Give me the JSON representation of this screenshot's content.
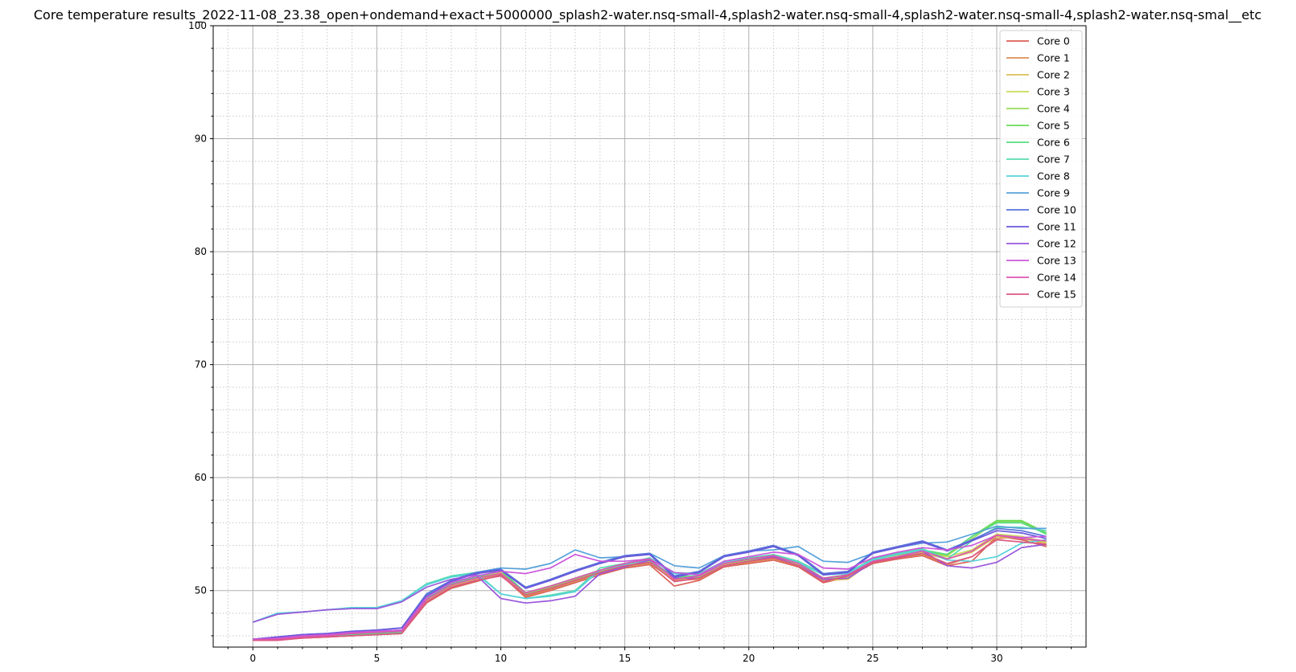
{
  "chart_data": {
    "type": "line",
    "title": "Core temperature results_2022-11-08_23.38_open+ondemand+exact+5000000_splash2-water.nsq-small-4,splash2-water.nsq-small-4,splash2-water.nsq-small-4,splash2-water.nsq-smal__etc",
    "xlabel": "",
    "ylabel": "",
    "xlim": [
      -1.6,
      33.6
    ],
    "ylim": [
      45.0,
      100.0
    ],
    "xticks": [
      0,
      5,
      10,
      15,
      20,
      25,
      30
    ],
    "yticks": [
      50,
      60,
      70,
      80,
      90,
      100
    ],
    "grid": true,
    "legend": "top-right",
    "x": [
      0,
      1,
      2,
      3,
      4,
      5,
      6,
      7,
      8,
      9,
      10,
      11,
      12,
      13,
      14,
      15,
      16,
      17,
      18,
      19,
      20,
      21,
      22,
      23,
      24,
      25,
      26,
      27,
      28,
      29,
      30,
      31,
      32
    ],
    "series": [
      {
        "name": "Core 0",
        "color": "#db5f57",
        "values": [
          45.6,
          45.7,
          45.8,
          45.9,
          46.0,
          46.1,
          46.2,
          48.9,
          50.2,
          50.8,
          51.4,
          49.4,
          50.0,
          50.7,
          51.4,
          52.0,
          52.3,
          50.4,
          50.9,
          52.1,
          52.4,
          52.7,
          52.1,
          50.7,
          51.2,
          52.4,
          52.8,
          53.1,
          52.2,
          52.6,
          54.8,
          54.5,
          53.9
        ]
      },
      {
        "name": "Core 1",
        "color": "#db8f57",
        "values": [
          45.6,
          45.7,
          45.8,
          45.9,
          46.0,
          46.1,
          46.2,
          49.0,
          50.3,
          50.9,
          51.5,
          49.5,
          50.1,
          50.8,
          51.5,
          52.1,
          52.4,
          50.9,
          51.0,
          52.2,
          52.5,
          52.8,
          52.2,
          50.8,
          51.3,
          52.5,
          52.9,
          53.2,
          52.3,
          53.0,
          54.6,
          54.8,
          54.0
        ]
      },
      {
        "name": "Core 2",
        "color": "#dbbf57",
        "values": [
          45.7,
          45.8,
          45.9,
          46.0,
          46.1,
          46.2,
          46.3,
          49.1,
          50.4,
          51.0,
          51.6,
          49.6,
          50.2,
          50.9,
          51.6,
          52.2,
          52.5,
          51.0,
          51.1,
          52.3,
          52.6,
          52.9,
          52.3,
          50.9,
          51.0,
          52.6,
          53.0,
          53.3,
          52.8,
          53.4,
          54.8,
          54.6,
          54.2
        ]
      },
      {
        "name": "Core 3",
        "color": "#c9db57",
        "values": [
          45.7,
          45.8,
          45.9,
          46.0,
          46.1,
          46.2,
          46.3,
          49.2,
          50.5,
          51.1,
          51.7,
          49.7,
          50.3,
          51.0,
          51.7,
          52.3,
          52.6,
          51.1,
          51.2,
          52.4,
          52.7,
          53.0,
          52.4,
          51.0,
          51.2,
          52.7,
          53.1,
          53.4,
          53.0,
          53.6,
          55.0,
          54.8,
          54.3
        ]
      },
      {
        "name": "Core 4",
        "color": "#99db57",
        "values": [
          45.7,
          45.8,
          45.9,
          46.0,
          46.1,
          46.2,
          46.3,
          49.2,
          50.5,
          51.1,
          51.7,
          49.7,
          50.3,
          51.0,
          51.7,
          52.3,
          52.6,
          51.1,
          51.2,
          52.4,
          52.7,
          53.0,
          52.4,
          51.0,
          51.3,
          52.8,
          53.2,
          53.5,
          53.1,
          54.6,
          56.1,
          56.1,
          55.0
        ]
      },
      {
        "name": "Core 5",
        "color": "#69db57",
        "values": [
          45.7,
          45.8,
          45.9,
          46.0,
          46.1,
          46.2,
          46.3,
          49.3,
          50.6,
          51.2,
          51.8,
          49.8,
          50.4,
          51.1,
          51.8,
          52.4,
          52.7,
          51.2,
          51.3,
          52.5,
          52.8,
          53.1,
          52.5,
          51.1,
          51.4,
          52.9,
          53.3,
          53.6,
          53.2,
          54.8,
          56.2,
          56.2,
          55.1
        ]
      },
      {
        "name": "Core 6",
        "color": "#57db80",
        "values": [
          45.7,
          45.8,
          45.9,
          46.0,
          46.1,
          46.2,
          46.3,
          49.3,
          50.6,
          51.2,
          51.8,
          49.8,
          50.4,
          51.1,
          51.8,
          52.4,
          52.7,
          51.2,
          51.3,
          52.5,
          52.8,
          53.1,
          52.5,
          51.1,
          51.4,
          52.9,
          53.3,
          53.6,
          53.2,
          54.8,
          56.0,
          56.0,
          55.0
        ]
      },
      {
        "name": "Core 7",
        "color": "#57dbb0",
        "values": [
          47.2,
          48.0,
          48.1,
          48.3,
          48.5,
          48.5,
          49.1,
          50.6,
          51.3,
          51.6,
          49.7,
          49.3,
          49.6,
          50.0,
          52.0,
          52.4,
          52.9,
          51.6,
          51.5,
          52.6,
          52.9,
          53.2,
          52.6,
          51.5,
          51.6,
          52.8,
          53.3,
          53.7,
          52.8,
          54.4,
          55.6,
          55.6,
          55.3
        ]
      },
      {
        "name": "Core 8",
        "color": "#57d3db",
        "values": [
          47.2,
          48.0,
          48.1,
          48.3,
          48.5,
          48.5,
          49.1,
          50.5,
          51.2,
          51.5,
          49.7,
          49.3,
          49.5,
          49.9,
          51.8,
          52.3,
          52.8,
          51.5,
          51.4,
          52.5,
          52.8,
          53.1,
          52.5,
          51.4,
          51.5,
          52.7,
          53.2,
          53.6,
          52.7,
          52.6,
          53.0,
          54.2,
          54.5
        ]
      },
      {
        "name": "Core 9",
        "color": "#57a2db",
        "values": [
          45.7,
          45.8,
          46.0,
          46.1,
          46.2,
          46.4,
          46.5,
          49.6,
          50.9,
          51.6,
          52.0,
          51.9,
          52.4,
          53.6,
          52.9,
          53.0,
          53.3,
          52.2,
          52.0,
          53.1,
          53.5,
          53.6,
          53.9,
          52.6,
          52.5,
          53.3,
          53.8,
          54.2,
          54.3,
          55.0,
          55.7,
          55.5,
          55.5
        ]
      },
      {
        "name": "Core 10",
        "color": "#5772db",
        "values": [
          45.7,
          45.9,
          46.1,
          46.2,
          46.4,
          46.5,
          46.7,
          49.7,
          50.9,
          51.6,
          51.9,
          50.3,
          51.0,
          51.8,
          52.5,
          53.1,
          53.3,
          51.3,
          51.7,
          53.1,
          53.5,
          54.0,
          53.2,
          51.5,
          51.7,
          53.4,
          53.9,
          54.4,
          53.6,
          54.5,
          55.5,
          55.3,
          54.8
        ]
      },
      {
        "name": "Core 11",
        "color": "#6a57db",
        "values": [
          45.7,
          45.9,
          46.1,
          46.2,
          46.4,
          46.5,
          46.7,
          49.5,
          50.8,
          51.5,
          51.8,
          50.2,
          50.9,
          51.7,
          52.4,
          53.0,
          53.2,
          51.2,
          51.6,
          53.0,
          53.4,
          53.9,
          53.1,
          51.4,
          51.6,
          53.3,
          53.8,
          54.3,
          53.5,
          54.4,
          55.3,
          55.1,
          54.6
        ]
      },
      {
        "name": "Core 12",
        "color": "#9a57db",
        "values": [
          47.2,
          47.9,
          48.1,
          48.3,
          48.4,
          48.4,
          49.0,
          50.3,
          51.0,
          51.4,
          49.3,
          48.9,
          49.1,
          49.5,
          51.5,
          52.1,
          52.7,
          51.1,
          51.1,
          52.2,
          52.6,
          53.0,
          52.2,
          51.0,
          51.1,
          52.5,
          53.0,
          53.5,
          52.2,
          52.0,
          52.5,
          53.8,
          54.1
        ]
      },
      {
        "name": "Core 13",
        "color": "#cb57db",
        "values": [
          45.7,
          45.8,
          46.0,
          46.1,
          46.3,
          46.4,
          46.5,
          49.4,
          50.7,
          51.3,
          51.7,
          51.5,
          52.0,
          53.2,
          52.6,
          52.6,
          52.8,
          51.6,
          51.4,
          52.6,
          53.0,
          53.4,
          53.2,
          52.0,
          51.9,
          52.9,
          53.4,
          53.8,
          53.6,
          54.0,
          54.9,
          54.7,
          54.8
        ]
      },
      {
        "name": "Core 14",
        "color": "#db57b2",
        "values": [
          45.6,
          45.7,
          45.9,
          46.0,
          46.2,
          46.3,
          46.4,
          49.2,
          50.5,
          51.1,
          51.5,
          49.8,
          50.4,
          51.1,
          51.8,
          52.4,
          52.8,
          51.0,
          51.3,
          52.4,
          52.8,
          53.1,
          52.4,
          51.1,
          51.4,
          52.6,
          53.0,
          53.5,
          52.8,
          53.5,
          54.9,
          54.6,
          54.4
        ]
      },
      {
        "name": "Core 15",
        "color": "#db5782",
        "values": [
          45.6,
          45.6,
          45.8,
          45.9,
          46.0,
          46.1,
          46.2,
          49.0,
          50.3,
          50.9,
          51.3,
          49.6,
          50.2,
          50.9,
          51.6,
          52.2,
          52.5,
          50.8,
          51.1,
          52.2,
          52.6,
          52.9,
          52.2,
          50.8,
          51.3,
          52.5,
          52.9,
          53.3,
          52.4,
          53.0,
          54.5,
          54.3,
          54.1
        ]
      }
    ]
  }
}
